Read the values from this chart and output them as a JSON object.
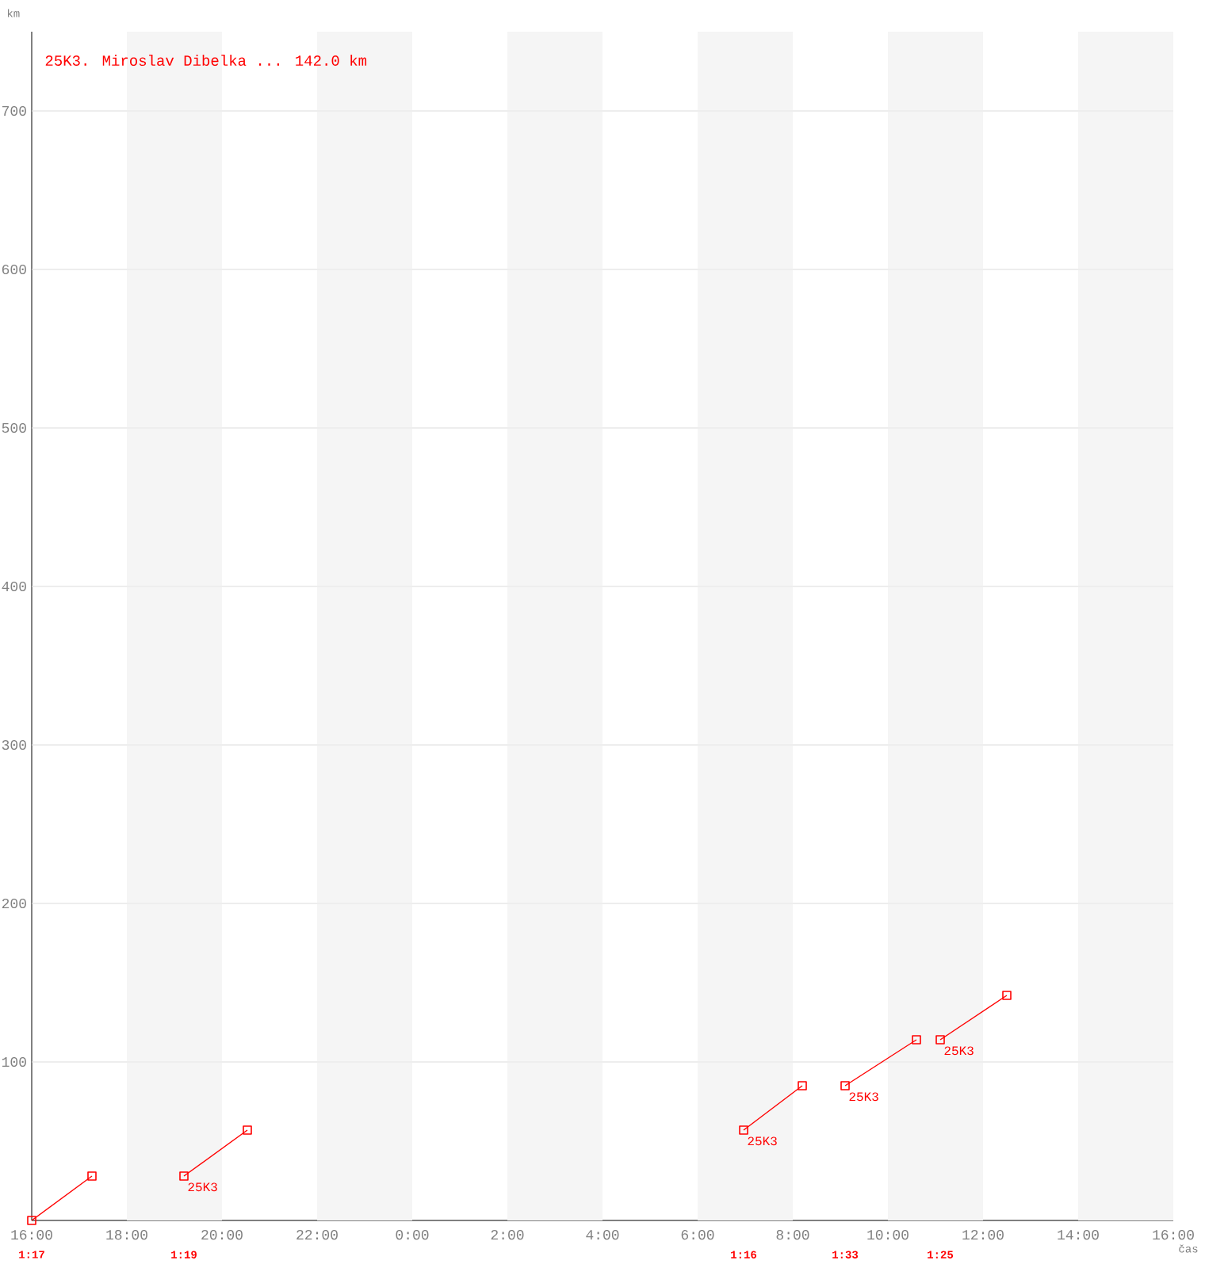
{
  "chart_data": {
    "type": "line",
    "title": "25K3. Miroslav Dibelka ... 142.0 km",
    "xlabel": "čas",
    "ylabel": "km",
    "xlim": [
      "2000-01-01T16:00",
      "2000-01-02T16:00"
    ],
    "xticks": [
      {
        "value": "2000-01-01T16:00",
        "label": "16:00"
      },
      {
        "value": "2000-01-01T18:00",
        "label": "18:00"
      },
      {
        "value": "2000-01-01T20:00",
        "label": "20:00"
      },
      {
        "value": "2000-01-01T22:00",
        "label": "22:00"
      },
      {
        "value": "2000-01-02T00:00",
        "label": "0:00"
      },
      {
        "value": "2000-01-02T02:00",
        "label": "2:00"
      },
      {
        "value": "2000-01-02T04:00",
        "label": "4:00"
      },
      {
        "value": "2000-01-02T06:00",
        "label": "6:00"
      },
      {
        "value": "2000-01-02T08:00",
        "label": "8:00"
      },
      {
        "value": "2000-01-02T10:00",
        "label": "10:00"
      },
      {
        "value": "2000-01-02T12:00",
        "label": "12:00"
      },
      {
        "value": "2000-01-02T14:00",
        "label": "14:00"
      },
      {
        "value": "2000-01-02T16:00",
        "label": "16:00"
      }
    ],
    "ylim": [
      0,
      750
    ],
    "yticks": [
      100,
      200,
      300,
      400,
      500,
      600,
      700
    ],
    "grid": "y",
    "marker": "square",
    "line_style": "solid",
    "series": [
      {
        "color": "#ff0000",
        "x": [
          "2000-01-01T16:00",
          "2000-01-01T17:16"
        ],
        "values": [
          0,
          28
        ]
      },
      {
        "name": "25K3",
        "color": "#ff0000",
        "x": [
          "2000-01-01T19:12",
          "2000-01-01T20:32"
        ],
        "values": [
          28,
          57
        ]
      },
      {
        "name": "25K3",
        "color": "#ff0000",
        "x": [
          "2000-01-02T06:58",
          "2000-01-02T08:12"
        ],
        "values": [
          57,
          85
        ]
      },
      {
        "name": "25K3",
        "color": "#ff0000",
        "x": [
          "2000-01-02T09:06",
          "2000-01-02T10:36"
        ],
        "values": [
          85,
          114
        ]
      },
      {
        "name": "25K3",
        "color": "#ff0000",
        "x": [
          "2000-01-02T11:06",
          "2000-01-02T12:30"
        ],
        "values": [
          114,
          142
        ]
      }
    ],
    "bands": [
      {
        "axis": "x",
        "from": "2000-01-01T18:00",
        "to": "2000-01-01T20:00",
        "color": "#f5f5f5"
      },
      {
        "axis": "x",
        "from": "2000-01-01T22:00",
        "to": "2000-01-02T00:00",
        "color": "#f5f5f5"
      },
      {
        "axis": "x",
        "from": "2000-01-02T02:00",
        "to": "2000-01-02T04:00",
        "color": "#f5f5f5"
      },
      {
        "axis": "x",
        "from": "2000-01-02T06:00",
        "to": "2000-01-02T08:00",
        "color": "#f5f5f5"
      },
      {
        "axis": "x",
        "from": "2000-01-02T10:00",
        "to": "2000-01-02T12:00",
        "color": "#f5f5f5"
      },
      {
        "axis": "x",
        "from": "2000-01-02T14:00",
        "to": "2000-01-02T16:00",
        "color": "#f5f5f5"
      }
    ],
    "annotations": [
      "1:17",
      "1:19",
      "1:16",
      "1:33",
      "1:25"
    ]
  }
}
